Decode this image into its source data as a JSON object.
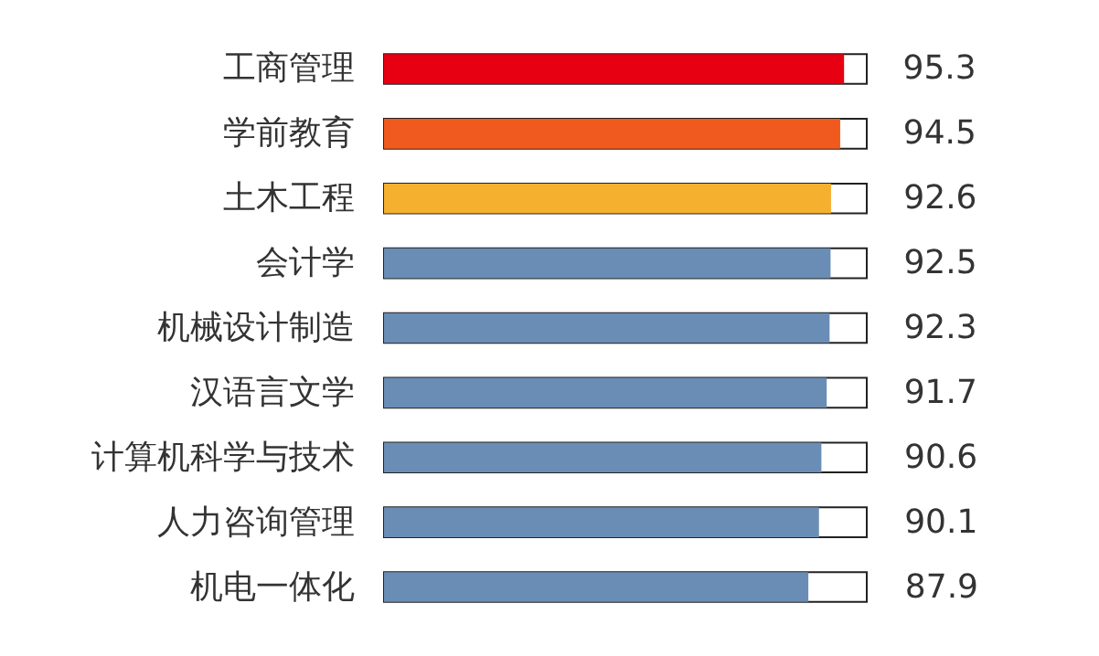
{
  "chart_data": {
    "type": "bar",
    "orientation": "horizontal",
    "categories": [
      "工商管理",
      "学前教育",
      "土木工程",
      "会计学",
      "机械设计制造",
      "汉语言文学",
      "计算机科学与技术",
      "人力咨询管理",
      "机电一体化"
    ],
    "values": [
      95.3,
      94.5,
      92.6,
      92.5,
      92.3,
      91.7,
      90.6,
      90.1,
      87.9
    ],
    "colors": [
      "#e60012",
      "#f05a1e",
      "#f5b030",
      "#6a8db5",
      "#6a8db5",
      "#6a8db5",
      "#6a8db5",
      "#6a8db5",
      "#6a8db5"
    ],
    "xlim": [
      0,
      100
    ],
    "data_labels": true,
    "tick_labels": "y"
  }
}
